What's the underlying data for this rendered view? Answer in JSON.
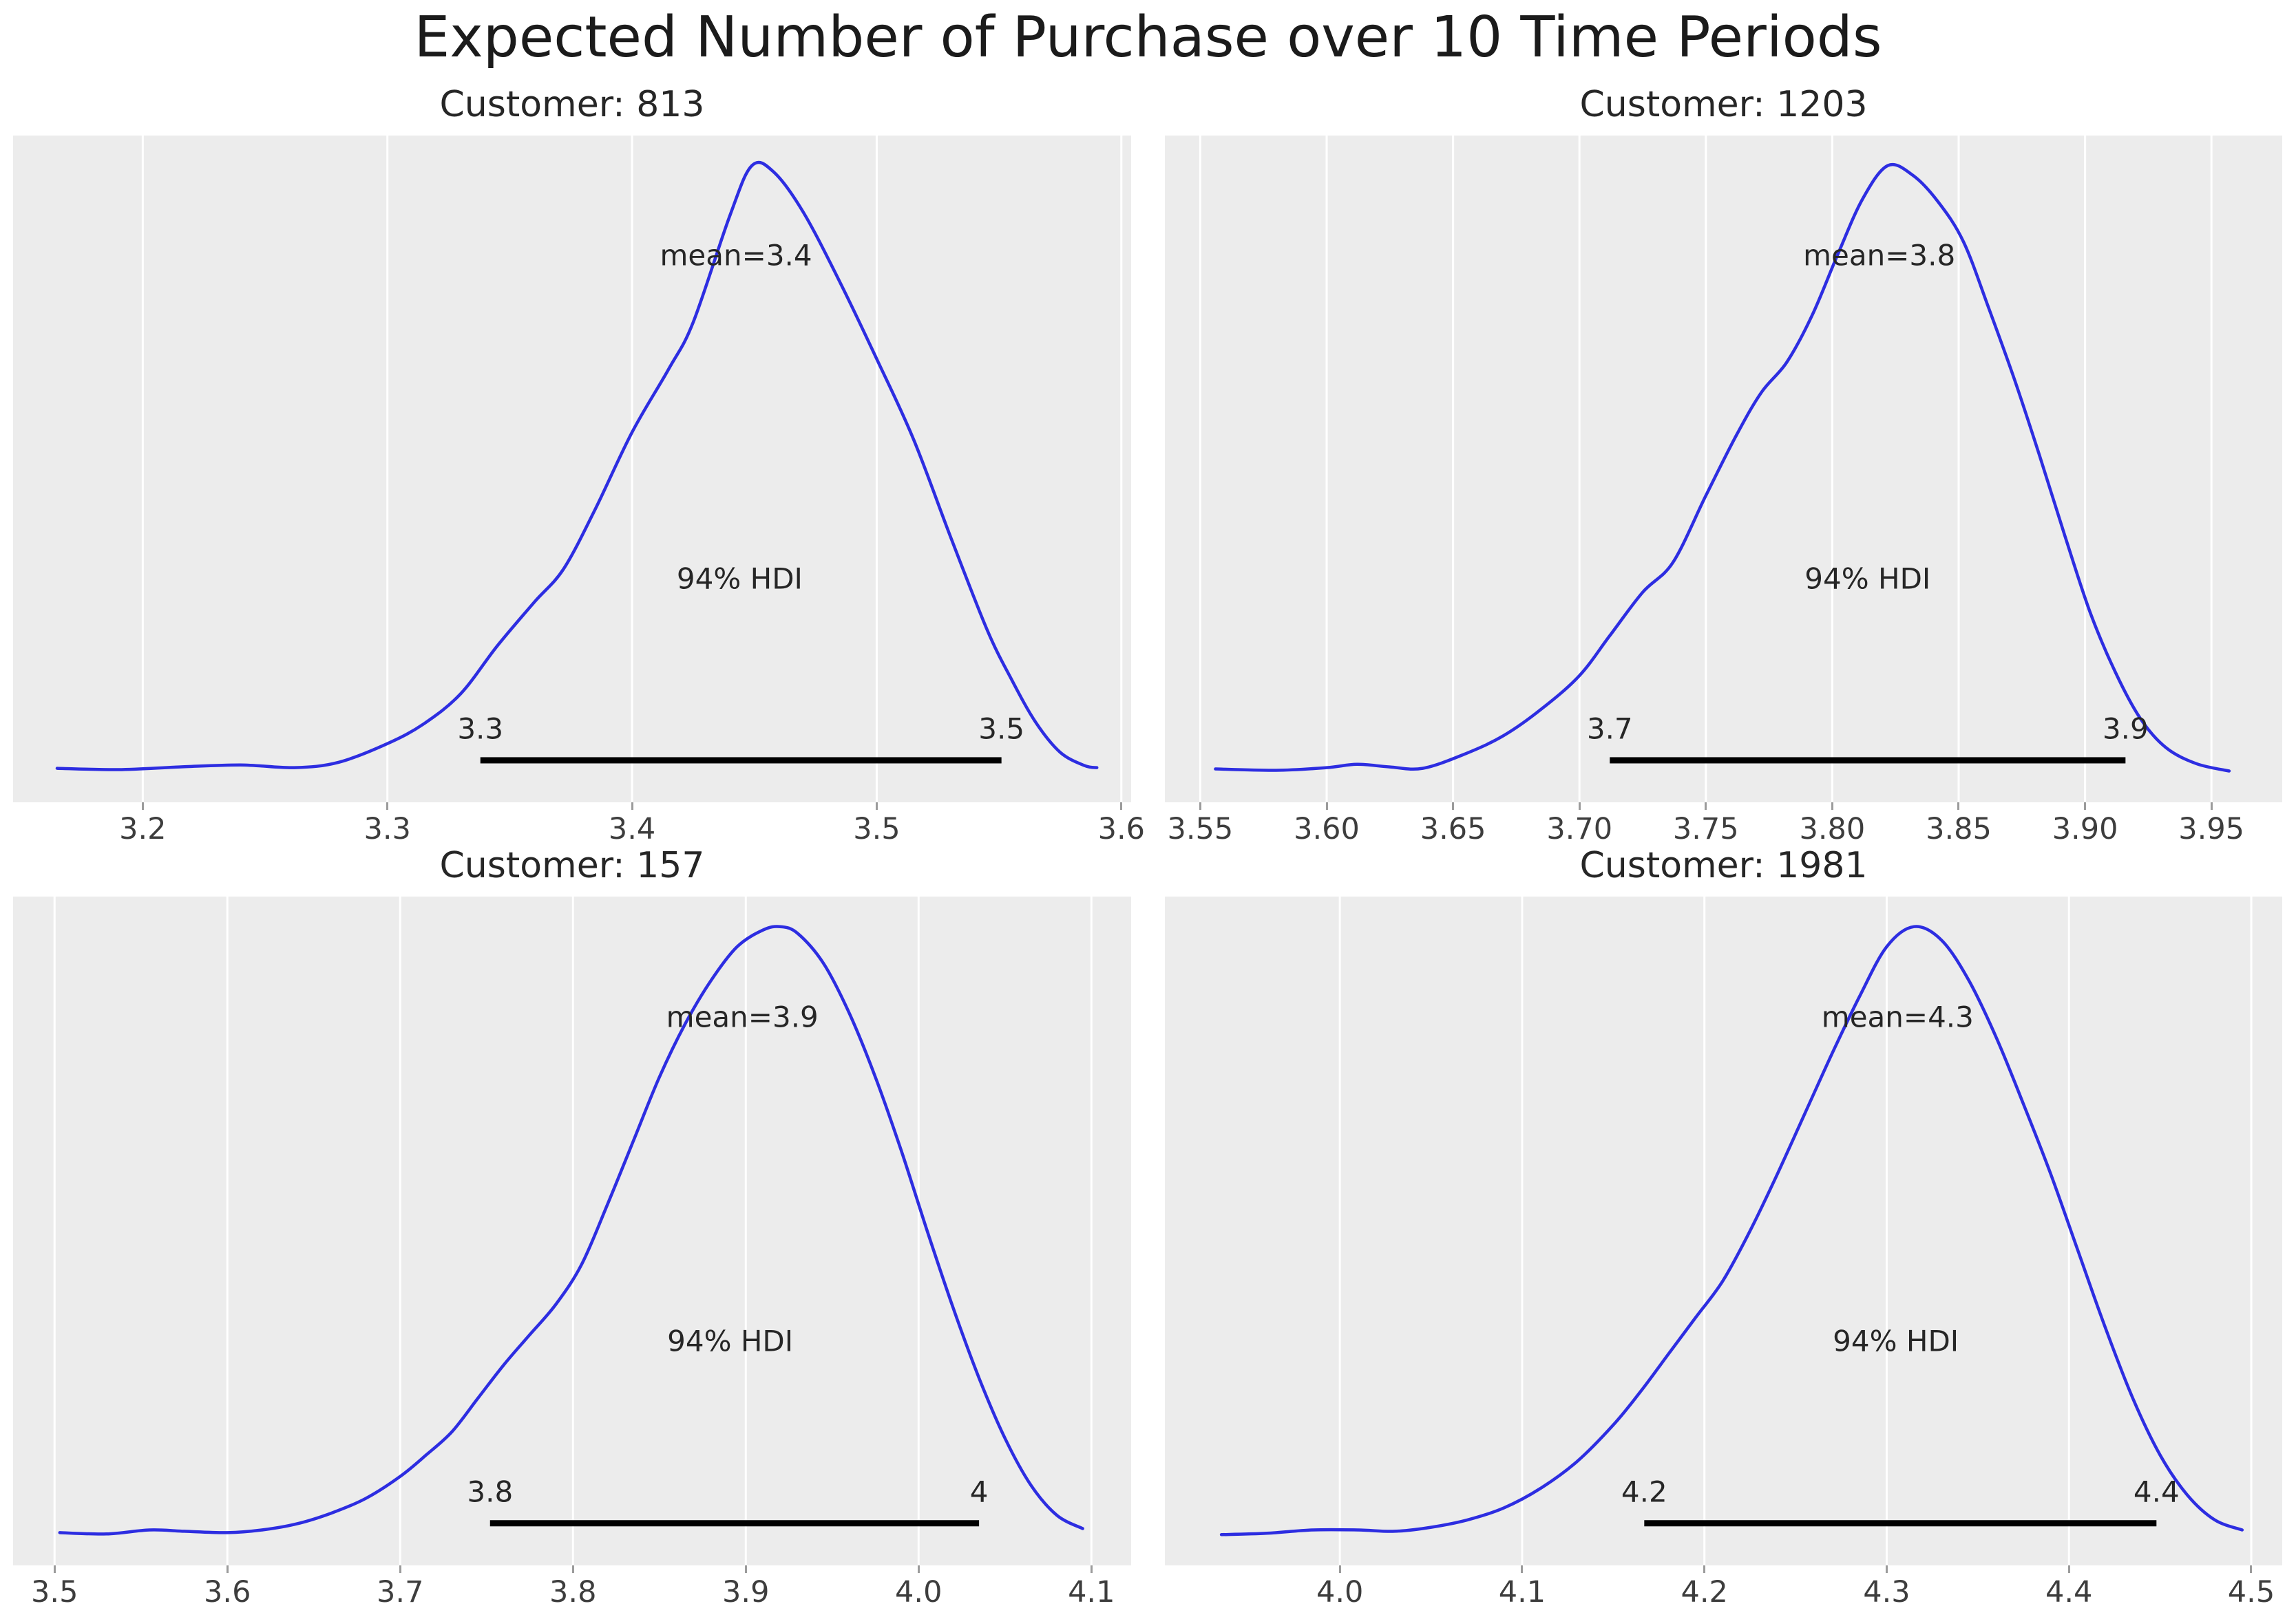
{
  "page": {
    "title": "Expected Number of Purchase over 10 Time Periods"
  },
  "style": {
    "curve_color": "#2d2de1",
    "panel_bg": "#ececec",
    "grid_color": "#ffffff",
    "hdi_bar_color": "#000000",
    "text_color": "#262626",
    "tick_text_color": "#3d3d3d"
  },
  "chart_data": [
    {
      "type": "line",
      "title": "Customer: 813",
      "mean": 3.4,
      "xlim": [
        3.147,
        3.604
      ],
      "x_ticks": {
        "values": [
          3.2,
          3.3,
          3.4,
          3.5,
          3.6
        ],
        "labels": [
          "3.2",
          "3.3",
          "3.4",
          "3.5",
          "3.6"
        ]
      },
      "hdi": {
        "prob": "94%",
        "lower": 3.3,
        "upper": 3.5,
        "lower_label": "3.3",
        "upper_label": "3.5",
        "bar_start": 3.338,
        "bar_end": 3.551
      },
      "annotations": {
        "mean_label": "mean=3.4",
        "hdi_label": "94% HDI",
        "mean_x": 3.4425,
        "mean_y_frac": 0.82,
        "hdi_x": 3.444,
        "hdi_y_frac": 0.335,
        "endpoint_y_frac": 0.11,
        "bar_y_frac": 0.063
      },
      "curve": [
        [
          3.165,
          0.051
        ],
        [
          3.19,
          0.049
        ],
        [
          3.215,
          0.053
        ],
        [
          3.24,
          0.056
        ],
        [
          3.262,
          0.052
        ],
        [
          3.28,
          0.06
        ],
        [
          3.3,
          0.088
        ],
        [
          3.315,
          0.118
        ],
        [
          3.33,
          0.163
        ],
        [
          3.345,
          0.235
        ],
        [
          3.36,
          0.3
        ],
        [
          3.372,
          0.35
        ],
        [
          3.385,
          0.44
        ],
        [
          3.4,
          0.555
        ],
        [
          3.415,
          0.65
        ],
        [
          3.425,
          0.72
        ],
        [
          3.44,
          0.88
        ],
        [
          3.449,
          0.955
        ],
        [
          3.458,
          0.945
        ],
        [
          3.47,
          0.885
        ],
        [
          3.485,
          0.78
        ],
        [
          3.5,
          0.665
        ],
        [
          3.515,
          0.545
        ],
        [
          3.53,
          0.4
        ],
        [
          3.545,
          0.26
        ],
        [
          3.555,
          0.185
        ],
        [
          3.565,
          0.12
        ],
        [
          3.575,
          0.075
        ],
        [
          3.585,
          0.055
        ],
        [
          3.59,
          0.052
        ]
      ]
    },
    {
      "type": "line",
      "title": "Customer: 1203",
      "mean": 3.8,
      "xlim": [
        3.536,
        3.978
      ],
      "x_ticks": {
        "values": [
          3.55,
          3.6,
          3.65,
          3.7,
          3.75,
          3.8,
          3.85,
          3.9,
          3.95
        ],
        "labels": [
          "3.55",
          "3.60",
          "3.65",
          "3.70",
          "3.75",
          "3.80",
          "3.85",
          "3.90",
          "3.95"
        ]
      },
      "hdi": {
        "prob": "94%",
        "lower": 3.7,
        "upper": 3.9,
        "lower_label": "3.7",
        "upper_label": "3.9",
        "bar_start": 3.712,
        "bar_end": 3.916
      },
      "annotations": {
        "mean_label": "mean=3.8",
        "hdi_label": "94% HDI",
        "mean_x": 3.8186,
        "mean_y_frac": 0.82,
        "hdi_x": 3.814,
        "hdi_y_frac": 0.335,
        "endpoint_y_frac": 0.11,
        "bar_y_frac": 0.063
      },
      "curve": [
        [
          3.556,
          0.05
        ],
        [
          3.58,
          0.048
        ],
        [
          3.6,
          0.052
        ],
        [
          3.612,
          0.057
        ],
        [
          3.625,
          0.053
        ],
        [
          3.638,
          0.051
        ],
        [
          3.655,
          0.073
        ],
        [
          3.67,
          0.1
        ],
        [
          3.685,
          0.14
        ],
        [
          3.7,
          0.19
        ],
        [
          3.712,
          0.25
        ],
        [
          3.725,
          0.315
        ],
        [
          3.737,
          0.36
        ],
        [
          3.75,
          0.46
        ],
        [
          3.762,
          0.55
        ],
        [
          3.772,
          0.615
        ],
        [
          3.782,
          0.66
        ],
        [
          3.792,
          0.73
        ],
        [
          3.802,
          0.82
        ],
        [
          3.812,
          0.905
        ],
        [
          3.822,
          0.955
        ],
        [
          3.832,
          0.94
        ],
        [
          3.842,
          0.9
        ],
        [
          3.852,
          0.84
        ],
        [
          3.862,
          0.74
        ],
        [
          3.872,
          0.635
        ],
        [
          3.882,
          0.52
        ],
        [
          3.892,
          0.4
        ],
        [
          3.902,
          0.285
        ],
        [
          3.912,
          0.195
        ],
        [
          3.922,
          0.125
        ],
        [
          3.932,
          0.082
        ],
        [
          3.944,
          0.058
        ],
        [
          3.957,
          0.047
        ]
      ]
    },
    {
      "type": "line",
      "title": "Customer: 157",
      "mean": 3.9,
      "xlim": [
        3.476,
        4.123
      ],
      "x_ticks": {
        "values": [
          3.5,
          3.6,
          3.7,
          3.8,
          3.9,
          4.0,
          4.1
        ],
        "labels": [
          "3.5",
          "3.6",
          "3.7",
          "3.8",
          "3.9",
          "4.0",
          "4.1"
        ]
      },
      "hdi": {
        "prob": "94%",
        "lower": 3.8,
        "upper": 4.0,
        "lower_label": "3.8",
        "upper_label": "4",
        "bar_start": 3.752,
        "bar_end": 4.035
      },
      "annotations": {
        "mean_label": "mean=3.9",
        "hdi_label": "94% HDI",
        "mean_x": 3.898,
        "mean_y_frac": 0.82,
        "hdi_x": 3.891,
        "hdi_y_frac": 0.335,
        "endpoint_y_frac": 0.11,
        "bar_y_frac": 0.063
      },
      "curve": [
        [
          3.503,
          0.049
        ],
        [
          3.53,
          0.047
        ],
        [
          3.555,
          0.053
        ],
        [
          3.575,
          0.051
        ],
        [
          3.6,
          0.049
        ],
        [
          3.62,
          0.053
        ],
        [
          3.64,
          0.062
        ],
        [
          3.66,
          0.078
        ],
        [
          3.68,
          0.1
        ],
        [
          3.7,
          0.133
        ],
        [
          3.715,
          0.165
        ],
        [
          3.73,
          0.2
        ],
        [
          3.745,
          0.25
        ],
        [
          3.76,
          0.3
        ],
        [
          3.775,
          0.345
        ],
        [
          3.79,
          0.39
        ],
        [
          3.805,
          0.45
        ],
        [
          3.82,
          0.54
        ],
        [
          3.835,
          0.635
        ],
        [
          3.85,
          0.73
        ],
        [
          3.865,
          0.81
        ],
        [
          3.88,
          0.875
        ],
        [
          3.895,
          0.925
        ],
        [
          3.91,
          0.95
        ],
        [
          3.92,
          0.955
        ],
        [
          3.93,
          0.945
        ],
        [
          3.945,
          0.9
        ],
        [
          3.96,
          0.825
        ],
        [
          3.975,
          0.73
        ],
        [
          3.99,
          0.62
        ],
        [
          4.005,
          0.5
        ],
        [
          4.02,
          0.385
        ],
        [
          4.035,
          0.28
        ],
        [
          4.05,
          0.19
        ],
        [
          4.065,
          0.12
        ],
        [
          4.08,
          0.075
        ],
        [
          4.095,
          0.055
        ]
      ]
    },
    {
      "type": "line",
      "title": "Customer: 1981",
      "mean": 4.3,
      "xlim": [
        3.904,
        4.517
      ],
      "x_ticks": {
        "values": [
          4.0,
          4.1,
          4.2,
          4.3,
          4.4,
          4.5
        ],
        "labels": [
          "4.0",
          "4.1",
          "4.2",
          "4.3",
          "4.4",
          "4.5"
        ]
      },
      "hdi": {
        "prob": "94%",
        "lower": 4.2,
        "upper": 4.4,
        "lower_label": "4.2",
        "upper_label": "4.4",
        "bar_start": 4.167,
        "bar_end": 4.448
      },
      "annotations": {
        "mean_label": "mean=4.3",
        "hdi_label": "94% HDI",
        "mean_x": 4.306,
        "mean_y_frac": 0.82,
        "hdi_x": 4.305,
        "hdi_y_frac": 0.335,
        "endpoint_y_frac": 0.11,
        "bar_y_frac": 0.063
      },
      "curve": [
        [
          3.935,
          0.046
        ],
        [
          3.96,
          0.048
        ],
        [
          3.985,
          0.053
        ],
        [
          4.01,
          0.053
        ],
        [
          4.03,
          0.051
        ],
        [
          4.05,
          0.057
        ],
        [
          4.07,
          0.068
        ],
        [
          4.09,
          0.086
        ],
        [
          4.11,
          0.115
        ],
        [
          4.13,
          0.155
        ],
        [
          4.15,
          0.21
        ],
        [
          4.165,
          0.26
        ],
        [
          4.18,
          0.315
        ],
        [
          4.195,
          0.37
        ],
        [
          4.21,
          0.425
        ],
        [
          4.225,
          0.5
        ],
        [
          4.24,
          0.585
        ],
        [
          4.255,
          0.675
        ],
        [
          4.27,
          0.765
        ],
        [
          4.285,
          0.85
        ],
        [
          4.3,
          0.925
        ],
        [
          4.315,
          0.955
        ],
        [
          4.33,
          0.935
        ],
        [
          4.345,
          0.875
        ],
        [
          4.36,
          0.79
        ],
        [
          4.375,
          0.69
        ],
        [
          4.39,
          0.585
        ],
        [
          4.405,
          0.47
        ],
        [
          4.42,
          0.355
        ],
        [
          4.435,
          0.25
        ],
        [
          4.45,
          0.165
        ],
        [
          4.465,
          0.105
        ],
        [
          4.48,
          0.068
        ],
        [
          4.495,
          0.053
        ]
      ]
    }
  ]
}
